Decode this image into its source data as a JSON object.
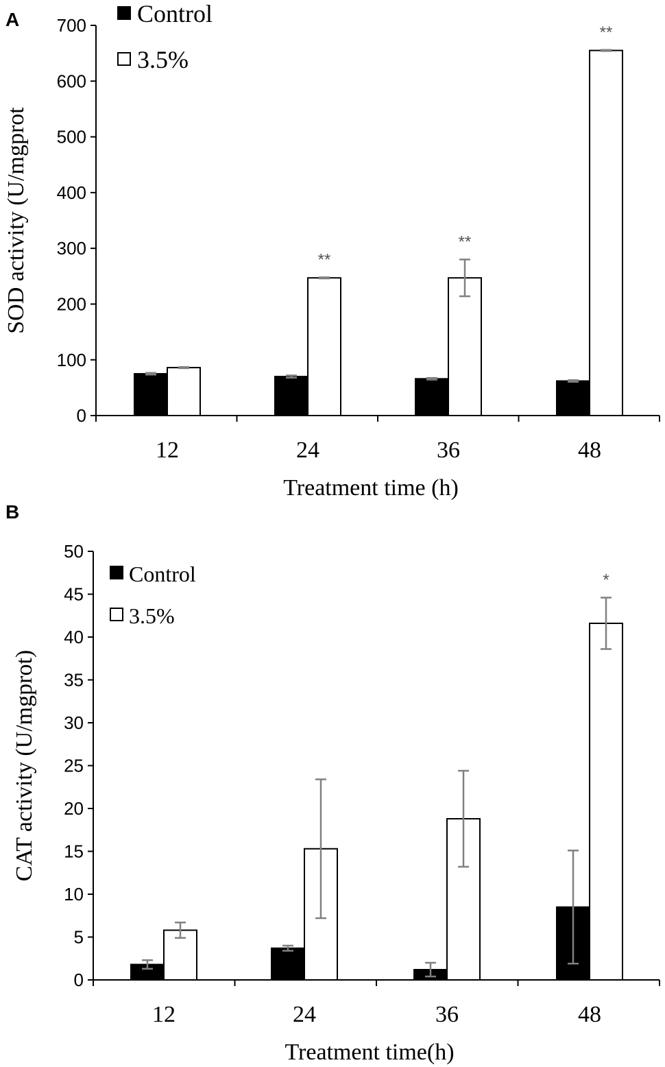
{
  "colors": {
    "control_fill": "#000000",
    "treated_fill": "#ffffff",
    "axis": "#000000",
    "error_bar": "#808080",
    "significance": "#555555"
  },
  "chart_data": [
    {
      "panel_label": "A",
      "type": "bar",
      "title": "",
      "categories": [
        "12",
        "24",
        "36",
        "48"
      ],
      "xlabel": "Treatment time (h)",
      "ylabel": "SOD activity (U/mgprot",
      "ylim": [
        0,
        700
      ],
      "yticks": [
        0,
        100,
        200,
        300,
        400,
        500,
        600,
        700
      ],
      "legend_position": "top-left",
      "series": [
        {
          "name": "Control",
          "values": [
            75,
            70,
            66,
            62
          ],
          "errors": [
            1.5,
            2,
            1.5,
            1.5
          ]
        },
        {
          "name": "3.5%",
          "values": [
            86,
            247,
            247,
            655
          ],
          "errors": [
            1,
            1,
            33,
            1
          ]
        }
      ],
      "significance": [
        "",
        "**",
        "**",
        "**"
      ]
    },
    {
      "panel_label": "B",
      "type": "bar",
      "title": "",
      "categories": [
        "12",
        "24",
        "36",
        "48"
      ],
      "xlabel": "Treatment time(h)",
      "ylabel": "CAT activity (U/mgprot)",
      "ylim": [
        0,
        50
      ],
      "yticks": [
        0,
        5,
        10,
        15,
        20,
        25,
        30,
        35,
        40,
        45,
        50
      ],
      "legend_position": "top-left",
      "series": [
        {
          "name": "Control",
          "values": [
            1.8,
            3.7,
            1.2,
            8.5
          ],
          "errors": [
            0.5,
            0.3,
            0.8,
            6.6
          ]
        },
        {
          "name": "3.5%",
          "values": [
            5.8,
            15.3,
            18.8,
            41.6
          ],
          "errors": [
            0.9,
            8.1,
            5.6,
            3.0
          ]
        }
      ],
      "significance": [
        "",
        "",
        "",
        "*"
      ]
    }
  ]
}
